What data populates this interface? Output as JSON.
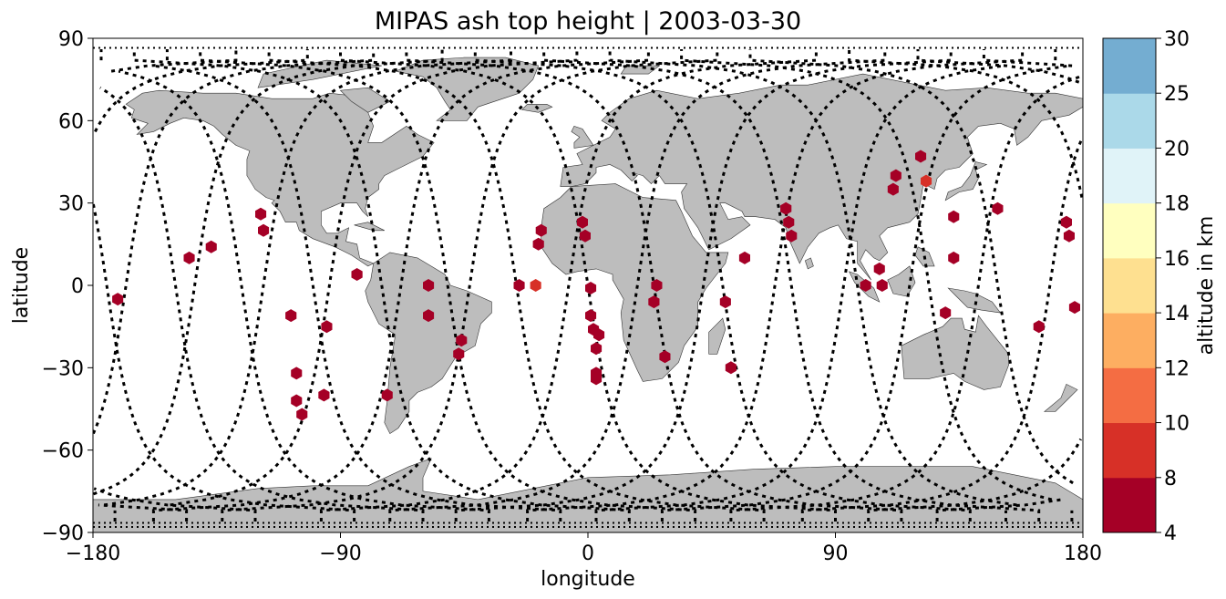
{
  "chart_data": {
    "type": "scatter",
    "title": "MIPAS ash top height | 2003-03-30",
    "xlabel": "longitude",
    "ylabel": "latitude",
    "xlim": [
      -180,
      180
    ],
    "ylim": [
      -90,
      90
    ],
    "x_ticks": [
      -180,
      -90,
      0,
      90,
      180
    ],
    "y_ticks": [
      -90,
      -60,
      -30,
      0,
      30,
      60,
      90
    ],
    "x_tick_labels": [
      "−180",
      "−90",
      "0",
      "90",
      "180"
    ],
    "y_tick_labels": [
      "−90",
      "−60",
      "−30",
      "0",
      "30",
      "60",
      "90"
    ],
    "colorbar": {
      "label": "altitude in km",
      "boundaries": [
        4,
        8,
        10,
        12,
        14,
        16,
        18,
        20,
        25,
        30
      ],
      "tick_labels": [
        "4",
        "8",
        "10",
        "12",
        "14",
        "16",
        "18",
        "20",
        "25",
        "30"
      ],
      "colors": [
        "#a50026",
        "#d73027",
        "#f46d43",
        "#fdae61",
        "#fee090",
        "#ffffbf",
        "#e0f3f8",
        "#abd9e9",
        "#74add1",
        "#4575b4",
        "#313695"
      ]
    },
    "land_color": "#bdbdbd",
    "track_color": "#000000",
    "ash_points": [
      {
        "lon": -171,
        "lat": -5,
        "alt": 6
      },
      {
        "lon": -145,
        "lat": 10,
        "alt": 6
      },
      {
        "lon": -137,
        "lat": 14,
        "alt": 6
      },
      {
        "lon": -119,
        "lat": 26,
        "alt": 6
      },
      {
        "lon": -118,
        "lat": 20,
        "alt": 6
      },
      {
        "lon": -108,
        "lat": -11,
        "alt": 6
      },
      {
        "lon": -106,
        "lat": -32,
        "alt": 6
      },
      {
        "lon": -106,
        "lat": -42,
        "alt": 6
      },
      {
        "lon": -104,
        "lat": -47,
        "alt": 6
      },
      {
        "lon": -96,
        "lat": -40,
        "alt": 6
      },
      {
        "lon": -95,
        "lat": -15,
        "alt": 6
      },
      {
        "lon": -84,
        "lat": 4,
        "alt": 6
      },
      {
        "lon": -73,
        "lat": -40,
        "alt": 6
      },
      {
        "lon": -58,
        "lat": 0,
        "alt": 6
      },
      {
        "lon": -58,
        "lat": -11,
        "alt": 6
      },
      {
        "lon": -46,
        "lat": -20,
        "alt": 6
      },
      {
        "lon": -47,
        "lat": -25,
        "alt": 6
      },
      {
        "lon": -25,
        "lat": 0,
        "alt": 6
      },
      {
        "lon": -19,
        "lat": 0,
        "alt": 9
      },
      {
        "lon": -17,
        "lat": 20,
        "alt": 6
      },
      {
        "lon": -18,
        "lat": 15,
        "alt": 6
      },
      {
        "lon": -2,
        "lat": 23,
        "alt": 6
      },
      {
        "lon": -1,
        "lat": 18,
        "alt": 6
      },
      {
        "lon": 1,
        "lat": -1,
        "alt": 6
      },
      {
        "lon": 1,
        "lat": -11,
        "alt": 6
      },
      {
        "lon": 2,
        "lat": -16,
        "alt": 6
      },
      {
        "lon": 4,
        "lat": -18,
        "alt": 6
      },
      {
        "lon": 3,
        "lat": -23,
        "alt": 6
      },
      {
        "lon": 3,
        "lat": -32,
        "alt": 6
      },
      {
        "lon": 3,
        "lat": -34,
        "alt": 6
      },
      {
        "lon": 25,
        "lat": 0,
        "alt": 6
      },
      {
        "lon": 24,
        "lat": -6,
        "alt": 6
      },
      {
        "lon": 28,
        "lat": -26,
        "alt": 6
      },
      {
        "lon": 50,
        "lat": -6,
        "alt": 6
      },
      {
        "lon": 52,
        "lat": -30,
        "alt": 6
      },
      {
        "lon": 57,
        "lat": 10,
        "alt": 6
      },
      {
        "lon": 72,
        "lat": 28,
        "alt": 6
      },
      {
        "lon": 73,
        "lat": 23,
        "alt": 6
      },
      {
        "lon": 74,
        "lat": 18,
        "alt": 6
      },
      {
        "lon": 101,
        "lat": 0,
        "alt": 6
      },
      {
        "lon": 106,
        "lat": 6,
        "alt": 6
      },
      {
        "lon": 107,
        "lat": 0,
        "alt": 6
      },
      {
        "lon": 111,
        "lat": 35,
        "alt": 6
      },
      {
        "lon": 112,
        "lat": 40,
        "alt": 6
      },
      {
        "lon": 121,
        "lat": 47,
        "alt": 6
      },
      {
        "lon": 123,
        "lat": 38,
        "alt": 9
      },
      {
        "lon": 133,
        "lat": 25,
        "alt": 6
      },
      {
        "lon": 133,
        "lat": 10,
        "alt": 6
      },
      {
        "lon": 130,
        "lat": -10,
        "alt": 6
      },
      {
        "lon": 149,
        "lat": 28,
        "alt": 6
      },
      {
        "lon": 164,
        "lat": -15,
        "alt": 6
      },
      {
        "lon": 174,
        "lat": 23,
        "alt": 6
      },
      {
        "lon": 175,
        "lat": 18,
        "alt": 6
      },
      {
        "lon": 177,
        "lat": -8,
        "alt": 6
      }
    ]
  }
}
